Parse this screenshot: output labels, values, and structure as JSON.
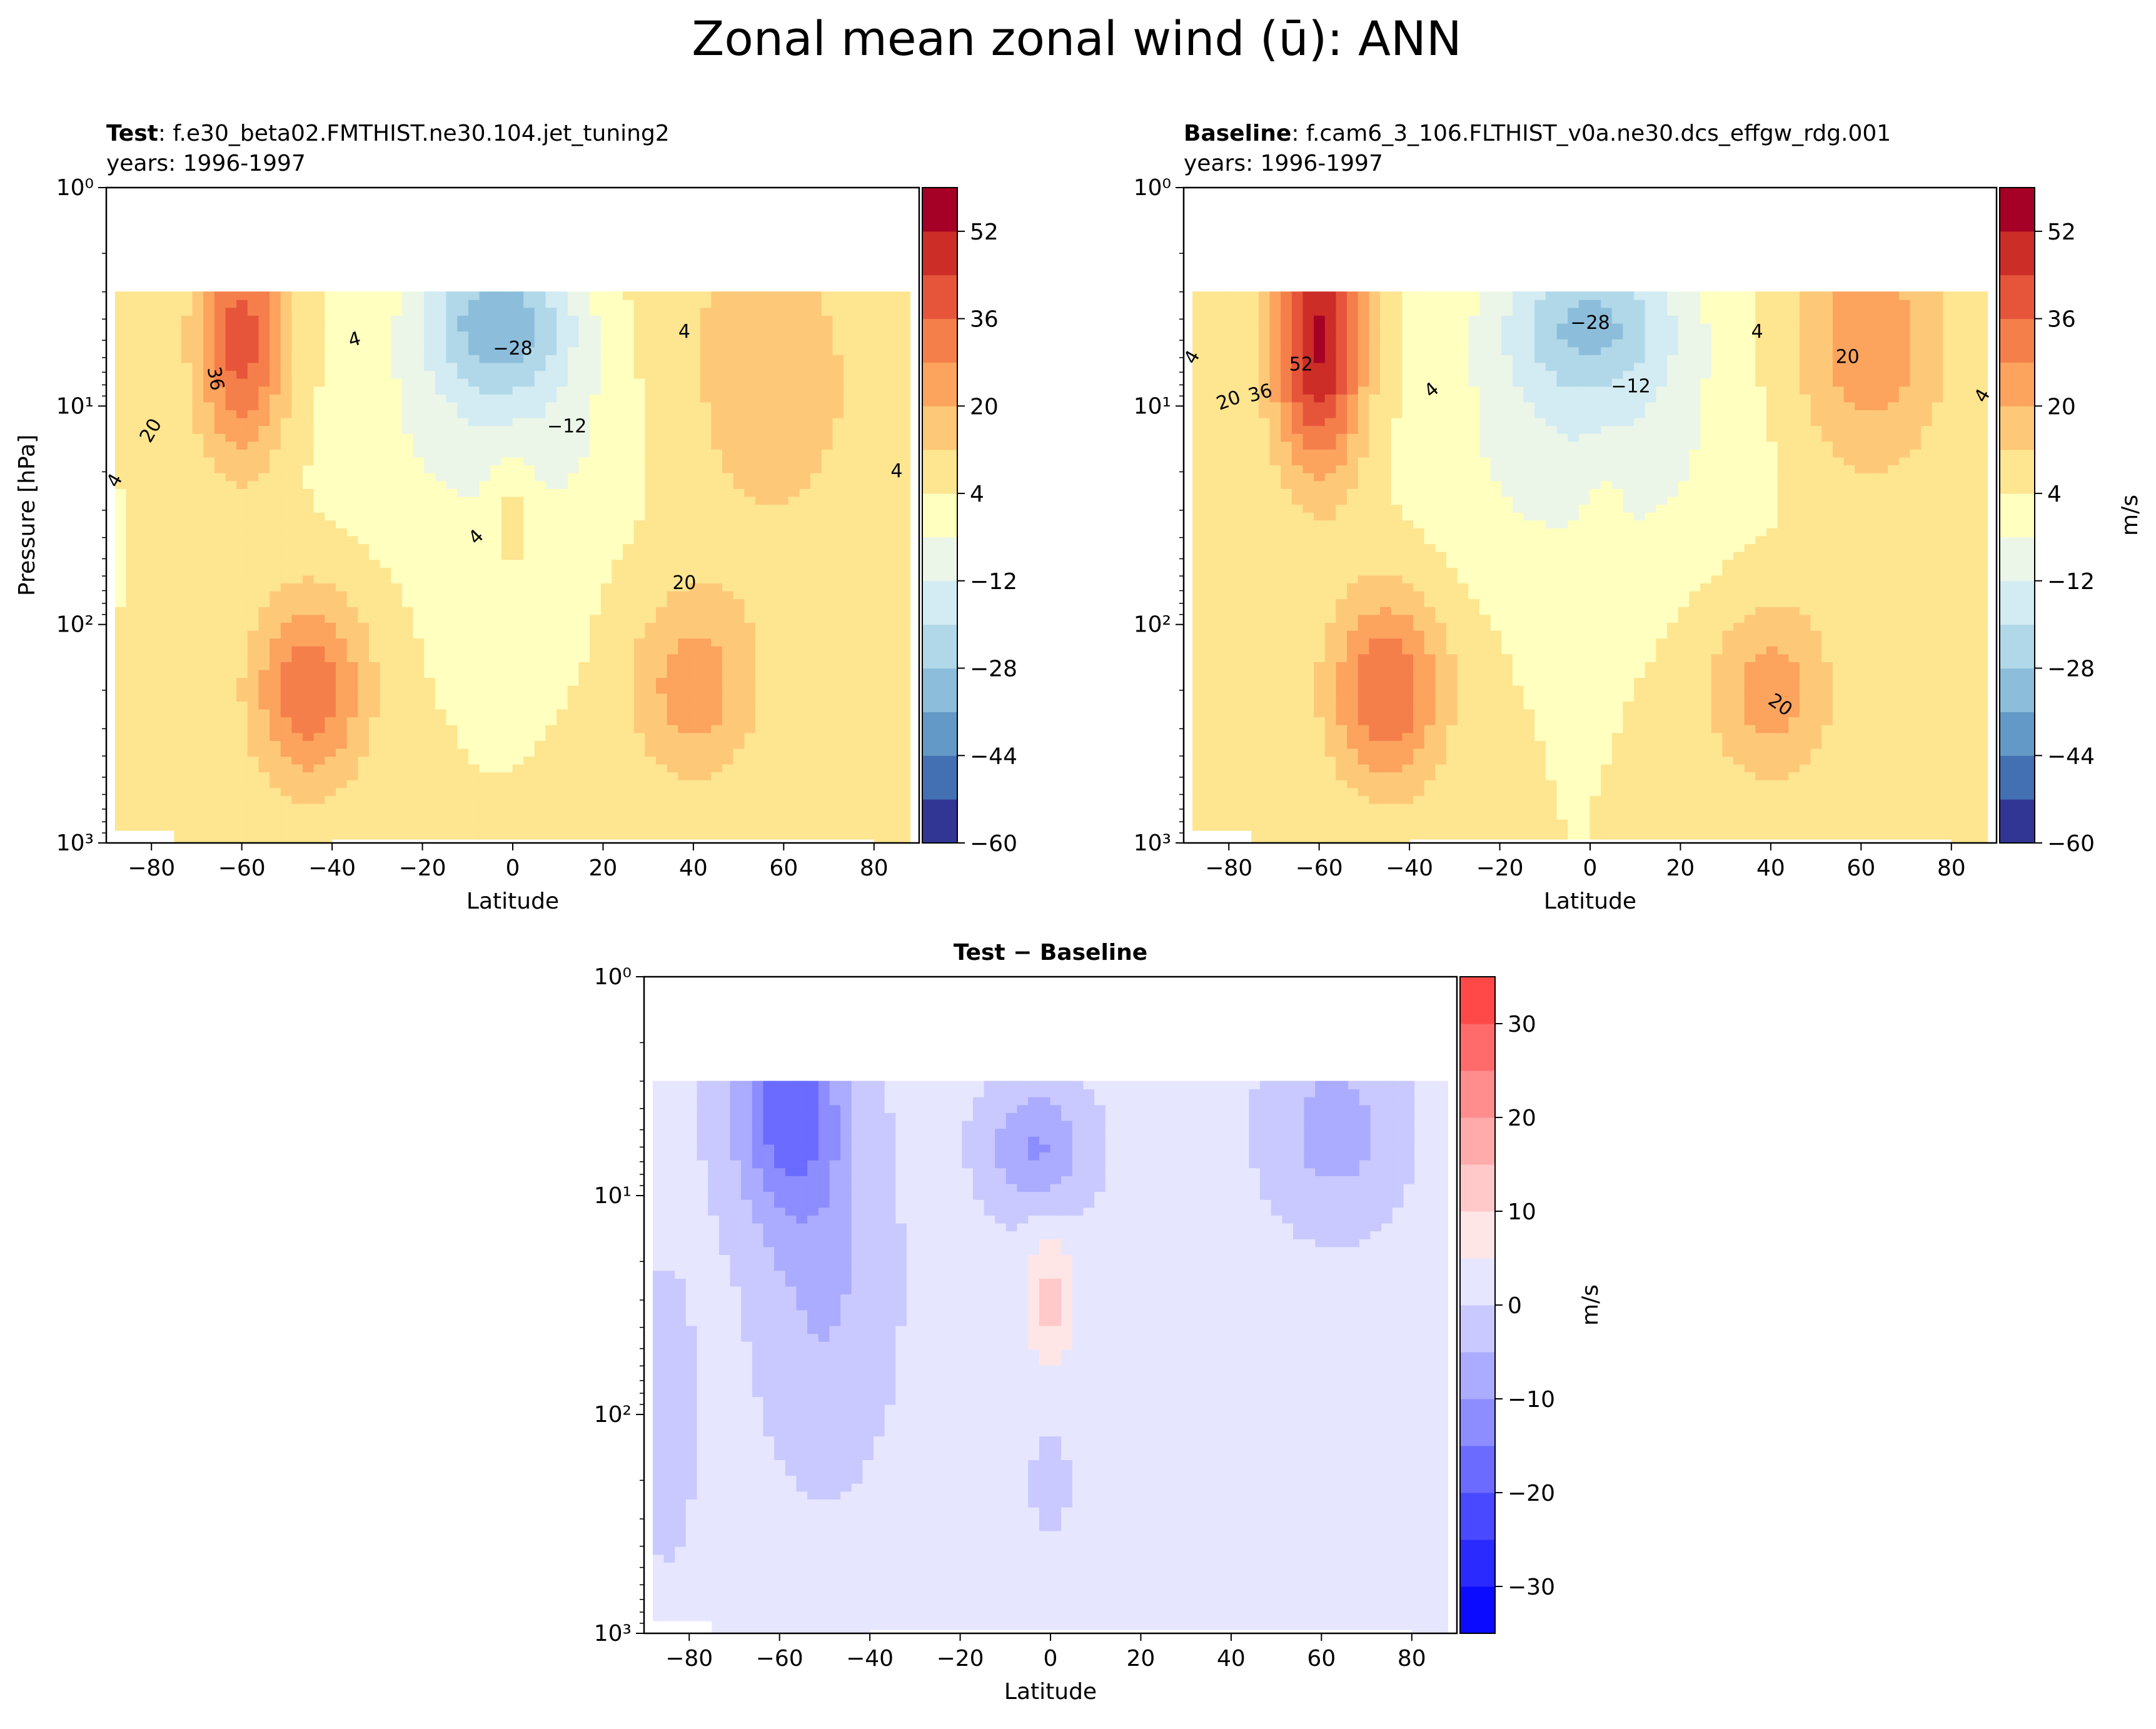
{
  "figure": {
    "title": "Zonal mean zonal wind (ū): ANN"
  },
  "chart_data": [
    {
      "id": "test",
      "type": "contourf",
      "title_bold": "Test",
      "title_rest": ": f.e30_beta02.FMTHIST.ne30.104.jet_tuning2",
      "subtitle": "years: 1996-1997",
      "xlabel": "Latitude",
      "ylabel": "Pressure [hPa]",
      "xlim": [
        -90,
        90
      ],
      "xticks": [
        "−80",
        "−60",
        "−40",
        "−20",
        "0",
        "20",
        "40",
        "60",
        "80"
      ],
      "xtick_values": [
        -80,
        -60,
        -40,
        -20,
        0,
        20,
        40,
        60,
        80
      ],
      "ylim": [
        1000,
        1
      ],
      "yscale": "log",
      "yticks": [
        "10⁰",
        "10¹",
        "10²",
        "10³"
      ],
      "ytick_values": [
        1,
        10,
        100,
        1000
      ],
      "data_top_hPa": 3,
      "colorbar": {
        "label": "",
        "ticks": [
          "−60",
          "−44",
          "−28",
          "−12",
          "4",
          "20",
          "36",
          "52"
        ],
        "tick_values": [
          -60,
          -44,
          -28,
          -12,
          4,
          20,
          36,
          52
        ],
        "range": [
          -60,
          60
        ],
        "levels": [
          -60,
          -52,
          -44,
          -36,
          -28,
          -20,
          -12,
          -4,
          4,
          12,
          20,
          28,
          36,
          44,
          52,
          60
        ],
        "colors": [
          "#313695",
          "#4370b2",
          "#6399c6",
          "#8cbedb",
          "#b1d8e8",
          "#d3ebf3",
          "#ebf6e8",
          "#ffffbf",
          "#fee590",
          "#fdc978",
          "#fca35e",
          "#f57f4a",
          "#e6553a",
          "#cd2d27",
          "#a50026"
        ]
      },
      "contour_labels": [
        "−28",
        "−12",
        "4",
        "4",
        "4",
        "4",
        "4",
        "20",
        "20",
        "36"
      ],
      "features": [
        {
          "lat": -60,
          "hPa": 5,
          "value": 40,
          "desc": "SH polar night jet"
        },
        {
          "lat": -45,
          "hPa": 200,
          "value": 34,
          "desc": "SH subtropical jet"
        },
        {
          "lat": 40,
          "hPa": 200,
          "value": 24,
          "desc": "NH subtropical jet"
        },
        {
          "lat": -3,
          "hPa": 4,
          "value": -32,
          "desc": "equatorial easterlies"
        },
        {
          "lat": 0,
          "hPa": 30,
          "value": 8,
          "desc": "equatorial westerly"
        }
      ]
    },
    {
      "id": "baseline",
      "type": "contourf",
      "title_bold": "Baseline",
      "title_rest": ": f.cam6_3_106.FLTHIST_v0a.ne30.dcs_effgw_rdg.001",
      "subtitle": "years: 1996-1997",
      "xlabel": "Latitude",
      "ylabel": "",
      "xlim": [
        -90,
        90
      ],
      "xticks": [
        "−80",
        "−60",
        "−40",
        "−20",
        "0",
        "20",
        "40",
        "60",
        "80"
      ],
      "xtick_values": [
        -80,
        -60,
        -40,
        -20,
        0,
        20,
        40,
        60,
        80
      ],
      "ylim": [
        1000,
        1
      ],
      "yscale": "log",
      "yticks": [
        "10⁰",
        "10¹",
        "10²",
        "10³"
      ],
      "ytick_values": [
        1,
        10,
        100,
        1000
      ],
      "data_top_hPa": 3,
      "colorbar": {
        "label": "m/s",
        "ticks": [
          "−60",
          "−44",
          "−28",
          "−12",
          "4",
          "20",
          "36",
          "52"
        ],
        "tick_values": [
          -60,
          -44,
          -28,
          -12,
          4,
          20,
          36,
          52
        ],
        "range": [
          -60,
          60
        ],
        "levels": [
          -60,
          -52,
          -44,
          -36,
          -28,
          -20,
          -12,
          -4,
          4,
          12,
          20,
          28,
          36,
          44,
          52,
          60
        ],
        "colors": [
          "#313695",
          "#4370b2",
          "#6399c6",
          "#8cbedb",
          "#b1d8e8",
          "#d3ebf3",
          "#ebf6e8",
          "#ffffbf",
          "#fee590",
          "#fdc978",
          "#fca35e",
          "#f57f4a",
          "#e6553a",
          "#cd2d27",
          "#a50026"
        ]
      },
      "contour_labels": [
        "−28",
        "−12",
        "4",
        "4",
        "4",
        "4",
        "20",
        "20",
        "20",
        "36",
        "52"
      ],
      "features": [
        {
          "lat": -60,
          "hPa": 5,
          "value": 54,
          "desc": "SH polar night jet"
        },
        {
          "lat": -45,
          "hPa": 200,
          "value": 36,
          "desc": "SH subtropical jet"
        },
        {
          "lat": 40,
          "hPa": 200,
          "value": 24,
          "desc": "NH subtropical jet"
        },
        {
          "lat": 60,
          "hPa": 5,
          "value": 24,
          "desc": "NH polar night jet"
        },
        {
          "lat": 0,
          "hPa": 4,
          "value": -26,
          "desc": "equatorial easterlies"
        }
      ]
    },
    {
      "id": "diff",
      "type": "contourf",
      "title_bold": "Test − Baseline",
      "title_rest": "",
      "subtitle": "",
      "xlabel": "Latitude",
      "ylabel": "",
      "xlim": [
        -90,
        90
      ],
      "xticks": [
        "−80",
        "−60",
        "−40",
        "−20",
        "0",
        "20",
        "40",
        "60",
        "80"
      ],
      "xtick_values": [
        -80,
        -60,
        -40,
        -20,
        0,
        20,
        40,
        60,
        80
      ],
      "ylim": [
        1000,
        1
      ],
      "yscale": "log",
      "yticks": [
        "10⁰",
        "10¹",
        "10²",
        "10³"
      ],
      "ytick_values": [
        1,
        10,
        100,
        1000
      ],
      "data_top_hPa": 3,
      "colorbar": {
        "label": "m/s",
        "ticks": [
          "−30",
          "−20",
          "−10",
          "0",
          "10",
          "20",
          "30"
        ],
        "tick_values": [
          -30,
          -20,
          -10,
          0,
          10,
          20,
          30
        ],
        "range": [
          -35,
          35
        ],
        "levels": [
          -35,
          -30,
          -25,
          -20,
          -15,
          -10,
          -5,
          0,
          5,
          10,
          15,
          20,
          25,
          30,
          35
        ],
        "colors": [
          "#0b0bff",
          "#2a2aff",
          "#4949ff",
          "#6b6bff",
          "#8d8dff",
          "#ababff",
          "#c9c9ff",
          "#e6e6ff",
          "#ffe6e6",
          "#ffc9c9",
          "#ffabab",
          "#ff8d8d",
          "#ff6b6b",
          "#ff4949",
          "#ff2a2a",
          "#ff0b0b"
        ]
      },
      "contour_labels": [],
      "features": [
        {
          "lat": -58,
          "hPa": 4,
          "value": -18,
          "desc": "SH stratospheric weakening"
        },
        {
          "lat": -3,
          "hPa": 6,
          "value": -12,
          "desc": "equatorial upper negative"
        },
        {
          "lat": 0,
          "hPa": 30,
          "value": 9,
          "desc": "equatorial positive"
        },
        {
          "lat": 63,
          "hPa": 5,
          "value": -9,
          "desc": "NH polar negative"
        }
      ]
    }
  ]
}
